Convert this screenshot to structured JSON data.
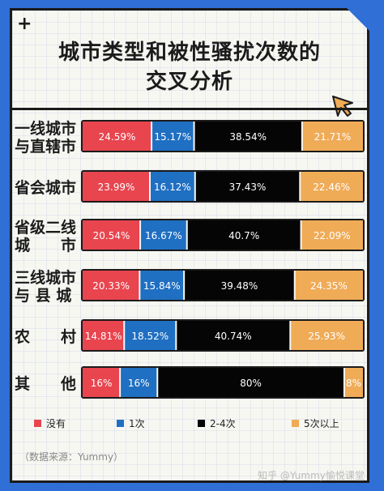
{
  "title_line1": "城市类型和被性骚扰次数的",
  "title_line2": "交叉分析",
  "source": "（数据来源：Yummy）",
  "watermark": "知乎 @Yummy愉悦课堂",
  "colors": {
    "none": "#e8454f",
    "once": "#1f6fc2",
    "two_to_four": "#050505",
    "five_plus": "#f0ab57",
    "background": "#2f6fd6"
  },
  "chart_data": {
    "type": "bar",
    "orientation": "horizontal",
    "stacked": true,
    "percent": true,
    "title": "城市类型和被性骚扰次数的交叉分析",
    "categories": [
      "一线城市与直辖市",
      "省会城市",
      "省级二线城市",
      "三线城市与县城",
      "农村",
      "其他"
    ],
    "category_label_lines": [
      [
        "一线城市",
        "与直辖市"
      ],
      [
        "省会城市"
      ],
      [
        "省级二线",
        "城　　市"
      ],
      [
        "三线城市",
        "与 县 城"
      ],
      [
        "农　　村"
      ],
      [
        "其　　他"
      ]
    ],
    "series": [
      {
        "name": "没有",
        "color": "#e8454f",
        "values": [
          24.59,
          23.99,
          20.54,
          20.33,
          14.81,
          16
        ],
        "labels": [
          "24.59%",
          "23.99%",
          "20.54%",
          "20.33%",
          "14.81%",
          "16%"
        ]
      },
      {
        "name": "1次",
        "color": "#1f6fc2",
        "values": [
          15.17,
          16.12,
          16.67,
          15.84,
          18.52,
          16
        ],
        "labels": [
          "15.17%",
          "16.12%",
          "16.67%",
          "15.84%",
          "18.52%",
          "16%"
        ]
      },
      {
        "name": "2-4次",
        "color": "#050505",
        "values": [
          38.54,
          37.43,
          40.7,
          39.48,
          40.74,
          80
        ],
        "labels": [
          "38.54%",
          "37.43%",
          "40.7%",
          "39.48%",
          "40.74%",
          "80%"
        ]
      },
      {
        "name": "5次以上",
        "color": "#f0ab57",
        "values": [
          21.71,
          22.46,
          22.09,
          24.35,
          25.93,
          8
        ],
        "labels": [
          "21.71%",
          "22.46%",
          "22.09%",
          "24.35%",
          "25.93%",
          "8%"
        ]
      }
    ],
    "legend_position": "bottom"
  }
}
